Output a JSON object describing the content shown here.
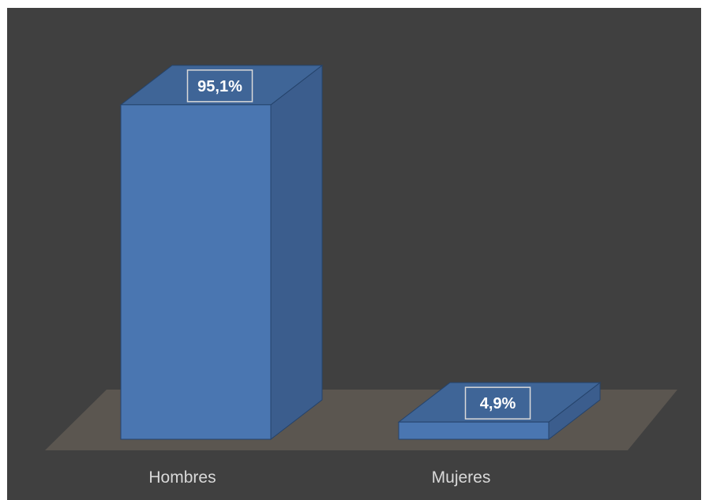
{
  "chart_data": {
    "type": "bar",
    "categories": [
      "Hombres",
      "Mujeres"
    ],
    "values": [
      95.1,
      4.9
    ],
    "data_labels": [
      "95,1%",
      "4,9%"
    ],
    "ylim": [
      0,
      100
    ],
    "grid": false,
    "legend": "none",
    "style": "3d-column"
  },
  "colors": {
    "background": "#404040",
    "bar_front": "#4a76b1",
    "bar_side": "#3b5d8d",
    "bar_top": "#3f6597",
    "bar_edge": "#25436b",
    "floor": "#5b5650",
    "label_box_border": "#d9d9d9",
    "axis_label": "#d9d9d9"
  }
}
